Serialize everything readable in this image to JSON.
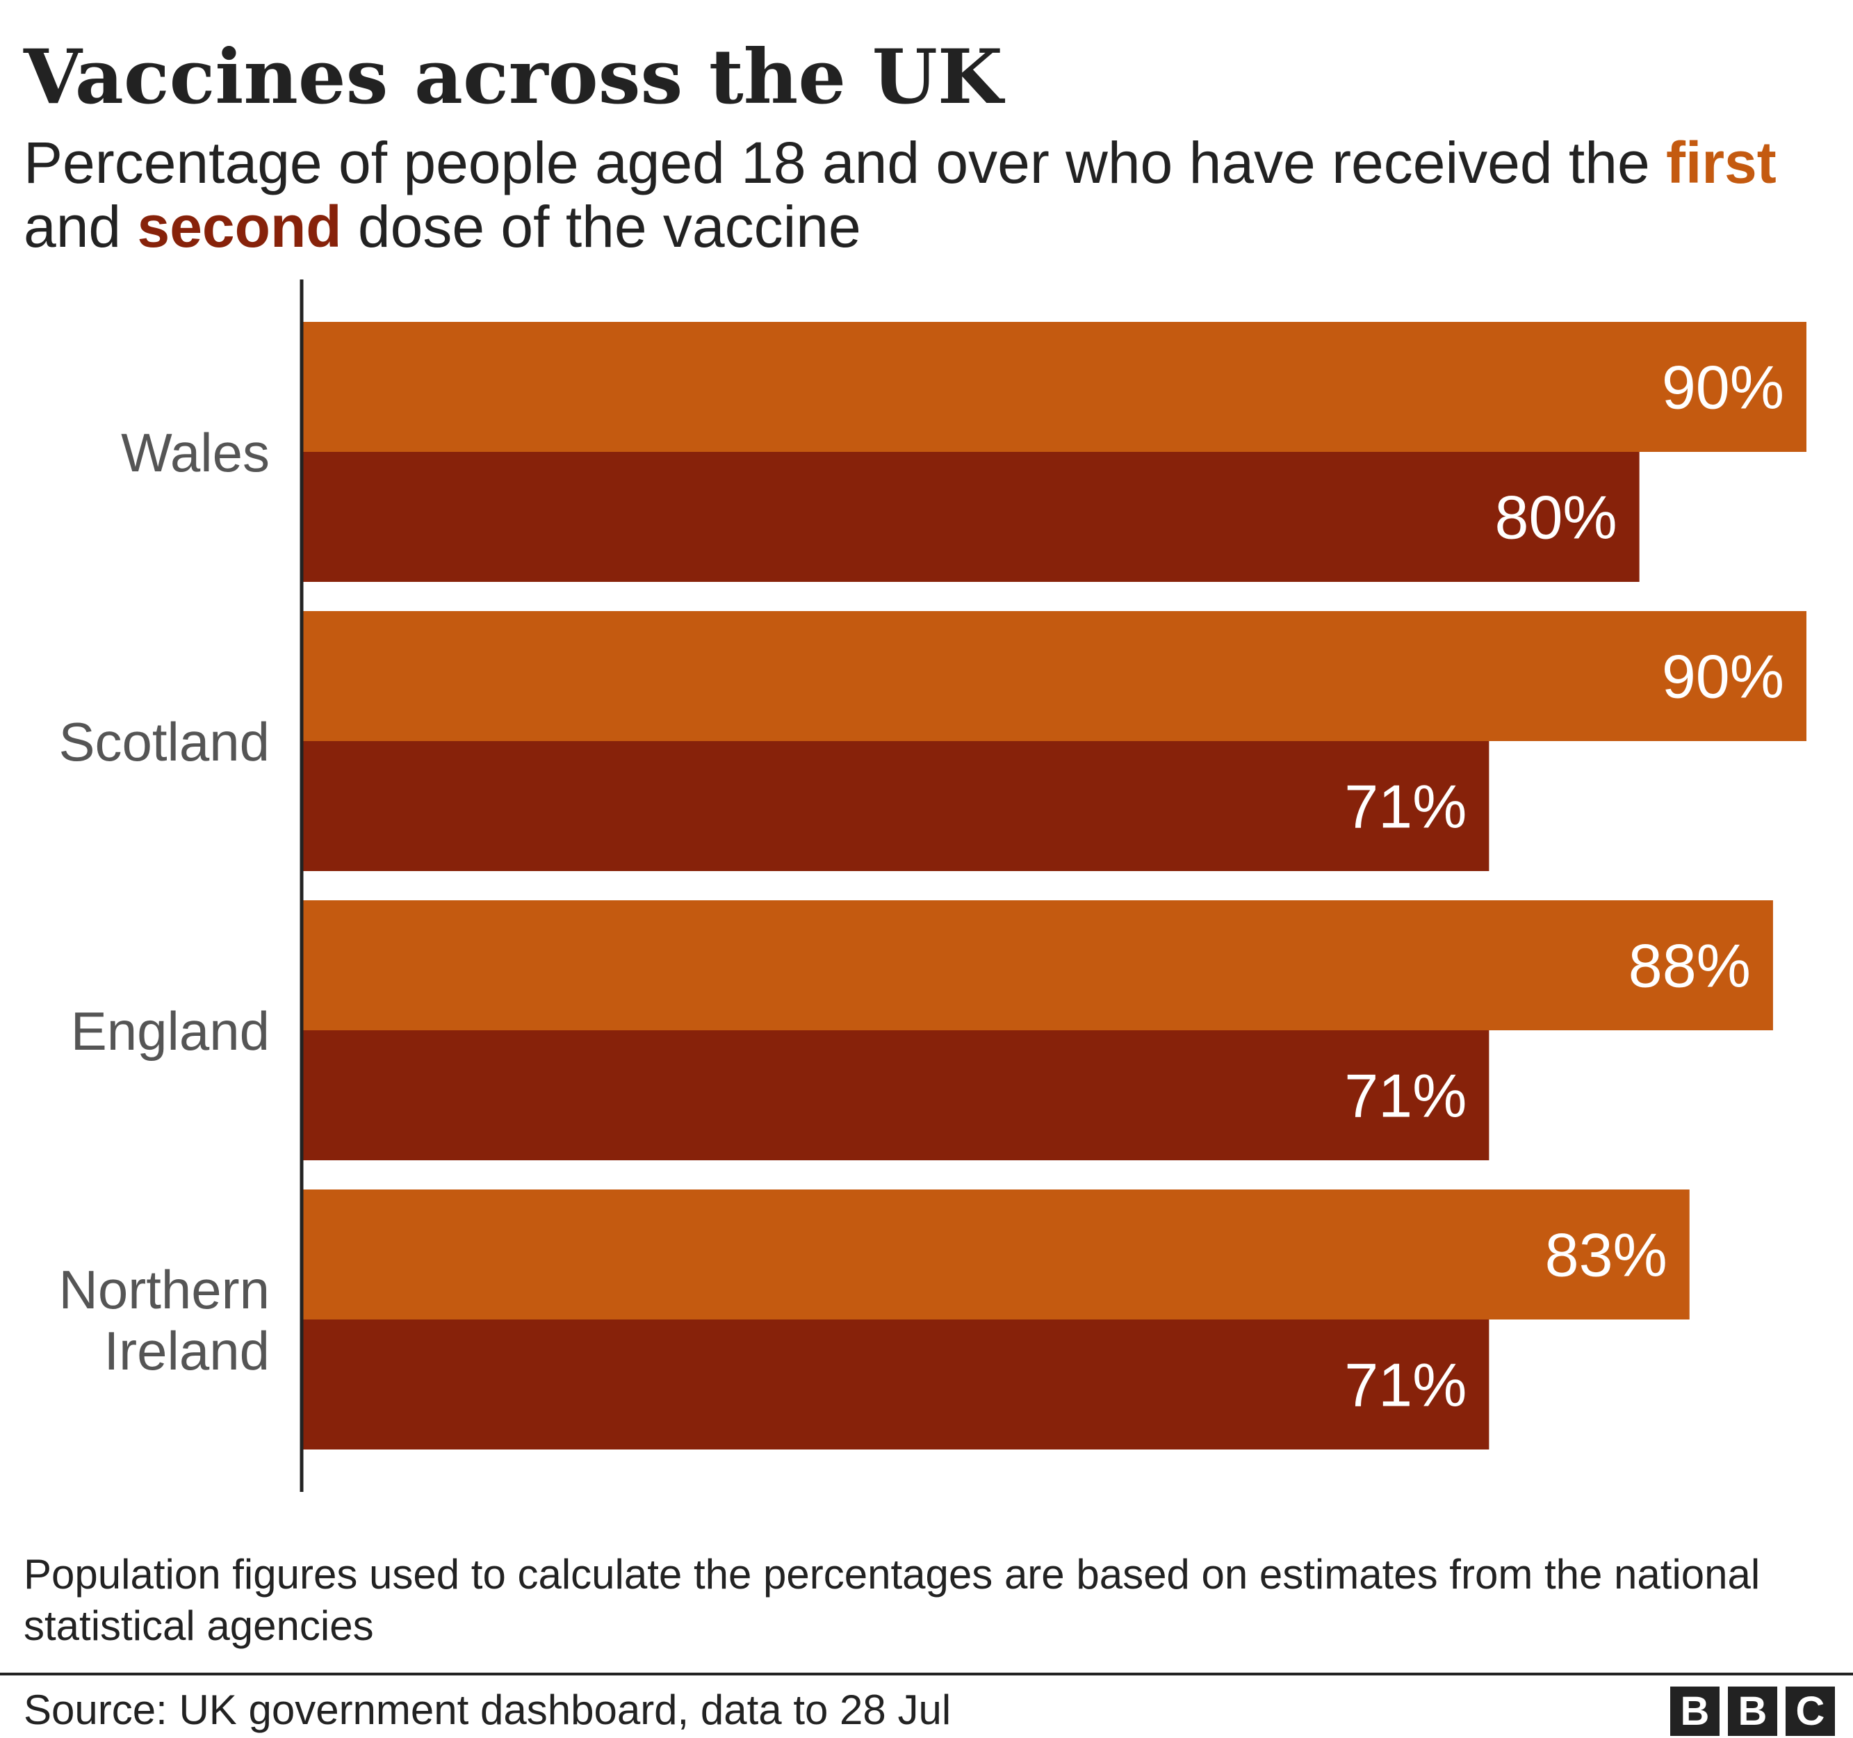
{
  "header": {
    "title": "Vaccines across the UK",
    "subtitle_part1": "Percentage of people aged 18 and over who have received the ",
    "subtitle_first": "first",
    "subtitle_part2": " and ",
    "subtitle_second": "second",
    "subtitle_part3": " dose of the vaccine"
  },
  "colors": {
    "first_dose": "#c45a10",
    "second_dose": "#87220a",
    "category_label": "#555555",
    "axis": "#222222",
    "value_label": "#ffffff"
  },
  "chart_data": {
    "type": "bar",
    "orientation": "horizontal",
    "categories": [
      "Wales",
      "Scotland",
      "England",
      "Northern Ireland"
    ],
    "category_lines": [
      [
        "Wales"
      ],
      [
        "Scotland"
      ],
      [
        "England"
      ],
      [
        "Northern",
        "Ireland"
      ]
    ],
    "series": [
      {
        "name": "first",
        "values": [
          90,
          90,
          88,
          83
        ],
        "labels": [
          "90%",
          "90%",
          "88%",
          "83%"
        ]
      },
      {
        "name": "second",
        "values": [
          80,
          71,
          71,
          71
        ],
        "labels": [
          "80%",
          "71%",
          "71%",
          "71%"
        ]
      }
    ],
    "xlim": [
      0,
      90
    ],
    "grid": false
  },
  "footer": {
    "note": "Population figures used to calculate the percentages are based on estimates from the national statistical agencies",
    "source": "Source: UK government dashboard, data to 28 Jul",
    "logo_letters": [
      "B",
      "B",
      "C"
    ]
  }
}
